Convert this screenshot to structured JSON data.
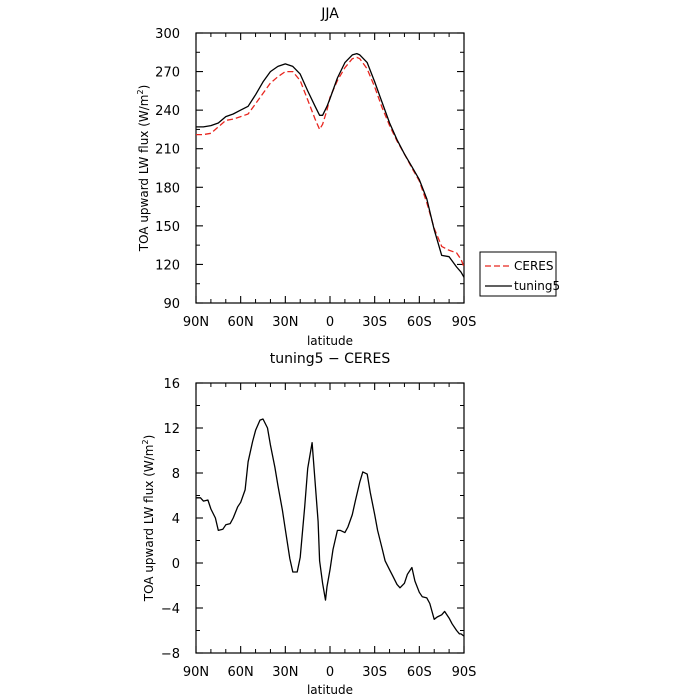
{
  "chart_data": [
    {
      "type": "line",
      "title": "JJA",
      "xlabel": "latitude",
      "ylabel_main": "TOA upward LW flux  (W/m",
      "ylabel_sup": "2",
      "ylabel_close": ")",
      "xlim": [
        90,
        -90
      ],
      "ylim": [
        90,
        300
      ],
      "xticks": [
        90,
        60,
        30,
        0,
        -30,
        -60,
        -90
      ],
      "xtick_labels": [
        "90N",
        "60N",
        "30N",
        "0",
        "30S",
        "60S",
        "90S"
      ],
      "yticks": [
        90,
        120,
        150,
        180,
        210,
        240,
        270,
        300
      ],
      "ytick_labels": [
        "90",
        "120",
        "150",
        "180",
        "210",
        "240",
        "270",
        "300"
      ],
      "legend_position": "right",
      "series": [
        {
          "name": "CERES",
          "color": "#e8261f",
          "dash": "dashed",
          "x": [
            90,
            85,
            80,
            75,
            70,
            65,
            60,
            55,
            50,
            45,
            40,
            35,
            30,
            25,
            20,
            15,
            10,
            7,
            5,
            2,
            0,
            -5,
            -10,
            -15,
            -18,
            -20,
            -25,
            -30,
            -35,
            -40,
            -45,
            -50,
            -55,
            -60,
            -65,
            -70,
            -75,
            -80,
            -85,
            -88,
            -90
          ],
          "y": [
            221,
            221,
            222,
            227,
            232,
            233,
            235,
            237,
            245,
            253,
            261,
            266,
            270,
            270,
            263,
            248,
            233,
            225,
            229,
            240,
            250,
            263,
            273,
            280,
            281,
            280,
            272,
            258,
            242,
            228,
            216,
            206,
            195,
            185,
            168,
            148,
            134,
            131,
            129,
            124,
            118
          ]
        },
        {
          "name": "tuning5",
          "color": "#000000",
          "dash": "solid",
          "x": [
            90,
            85,
            80,
            75,
            70,
            65,
            60,
            55,
            50,
            45,
            40,
            35,
            30,
            25,
            20,
            15,
            10,
            7,
            5,
            2,
            0,
            -5,
            -10,
            -15,
            -18,
            -20,
            -25,
            -30,
            -35,
            -40,
            -45,
            -50,
            -55,
            -60,
            -65,
            -70,
            -75,
            -80,
            -85,
            -88,
            -90
          ],
          "y": [
            227,
            227,
            228,
            230,
            235,
            237,
            240,
            243,
            252,
            262,
            270,
            274,
            276,
            274,
            268,
            255,
            243,
            236,
            236,
            243,
            249,
            265,
            277,
            283,
            284,
            283,
            277,
            262,
            246,
            230,
            217,
            206,
            196,
            186,
            171,
            147,
            127,
            126,
            118,
            114,
            110
          ]
        }
      ]
    },
    {
      "type": "line",
      "title": "tuning5 − CERES",
      "xlabel": "latitude",
      "ylabel_main": "TOA upward LW flux  (W/m",
      "ylabel_sup": "2",
      "ylabel_close": ")",
      "xlim": [
        90,
        -90
      ],
      "ylim": [
        -8,
        16
      ],
      "xticks": [
        90,
        60,
        30,
        0,
        -30,
        -60,
        -90
      ],
      "xtick_labels": [
        "90N",
        "60N",
        "30N",
        "0",
        "30S",
        "60S",
        "90S"
      ],
      "yticks": [
        -8,
        -4,
        0,
        4,
        8,
        12,
        16
      ],
      "ytick_labels": [
        "−8",
        "−4",
        "0",
        "4",
        "8",
        "12",
        "16"
      ],
      "series": [
        {
          "color": "#000000",
          "dash": "solid",
          "x": [
            90,
            87,
            85,
            82,
            80,
            77,
            75,
            72,
            70,
            67,
            65,
            62,
            60,
            57,
            55,
            52,
            50,
            47,
            45,
            42,
            40,
            37,
            35,
            32,
            30,
            27,
            25,
            22,
            20,
            17,
            15,
            12,
            10,
            8,
            7,
            5,
            3,
            2,
            0,
            -2,
            -5,
            -7,
            -10,
            -12,
            -15,
            -17,
            -20,
            -22,
            -25,
            -27,
            -30,
            -32,
            -35,
            -37,
            -40,
            -42,
            -45,
            -47,
            -50,
            -52,
            -55,
            -57,
            -60,
            -62,
            -65,
            -67,
            -70,
            -72,
            -75,
            -77,
            -80,
            -82,
            -85,
            -87,
            -88,
            -90
          ],
          "y": [
            5.8,
            5.8,
            5.5,
            5.6,
            4.8,
            4.0,
            2.9,
            3.0,
            3.4,
            3.5,
            4.0,
            5.0,
            5.4,
            6.5,
            9.0,
            10.8,
            11.8,
            12.7,
            12.8,
            12.0,
            10.5,
            8.5,
            6.9,
            4.7,
            3.0,
            0.4,
            -0.8,
            -0.8,
            0.5,
            5.0,
            8.4,
            10.7,
            7.2,
            3.7,
            0.2,
            -1.8,
            -3.3,
            -2.1,
            -0.6,
            1.2,
            2.9,
            2.9,
            2.7,
            3.2,
            4.3,
            5.5,
            7.2,
            8.1,
            7.9,
            6.3,
            4.3,
            2.9,
            1.3,
            0.2,
            -0.6,
            -1.1,
            -1.9,
            -2.2,
            -1.8,
            -1.0,
            -0.4,
            -1.6,
            -2.6,
            -3.0,
            -3.1,
            -3.6,
            -5.0,
            -4.8,
            -4.6,
            -4.3,
            -4.9,
            -5.4,
            -6.0,
            -6.3,
            -6.3,
            -6.5
          ]
        }
      ]
    }
  ]
}
